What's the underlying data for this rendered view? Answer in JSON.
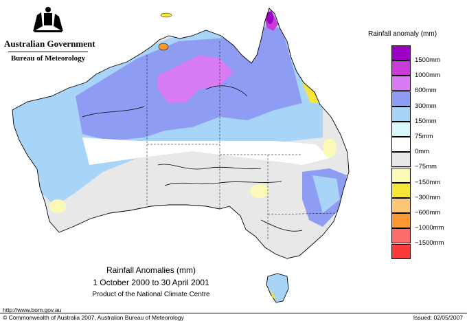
{
  "header": {
    "government": "Australian Government",
    "bureau": "Bureau of Meteorology"
  },
  "legend": {
    "title": "Rainfall anomaly (mm)",
    "items": [
      {
        "label": "1500mm",
        "color": "#9b00c4"
      },
      {
        "label": "1000mm",
        "color": "#c93bd9"
      },
      {
        "label": "600mm",
        "color": "#d97bf2"
      },
      {
        "label": "300mm",
        "color": "#8f9cf3"
      },
      {
        "label": "150mm",
        "color": "#a8d4f7"
      },
      {
        "label": "75mm",
        "color": "#d8f6fb"
      },
      {
        "label": "0mm",
        "color": "#ffffff"
      },
      {
        "label": "−75mm",
        "color": "#e8e8e8"
      },
      {
        "label": "−150mm",
        "color": "#fbf9b7"
      },
      {
        "label": "−300mm",
        "color": "#f7e63a"
      },
      {
        "label": "−600mm",
        "color": "#fbc777"
      },
      {
        "label": "−1000mm",
        "color": "#fb9a35"
      },
      {
        "label": "−1500mm",
        "color": "#fb6c6c"
      },
      {
        "label": "",
        "color": "#fb3b3b"
      }
    ]
  },
  "caption": {
    "title": "Rainfall Anomalies (mm)",
    "period": "1 October 2000 to 30 April 2001",
    "product": "Product of the National Climate Centre"
  },
  "footer": {
    "url": "http://www.bom.gov.au",
    "copyright": "© Commonwealth of Australia 2007, Australian Bureau of Meteorology",
    "issued": "Issued: 02/05/2007"
  }
}
